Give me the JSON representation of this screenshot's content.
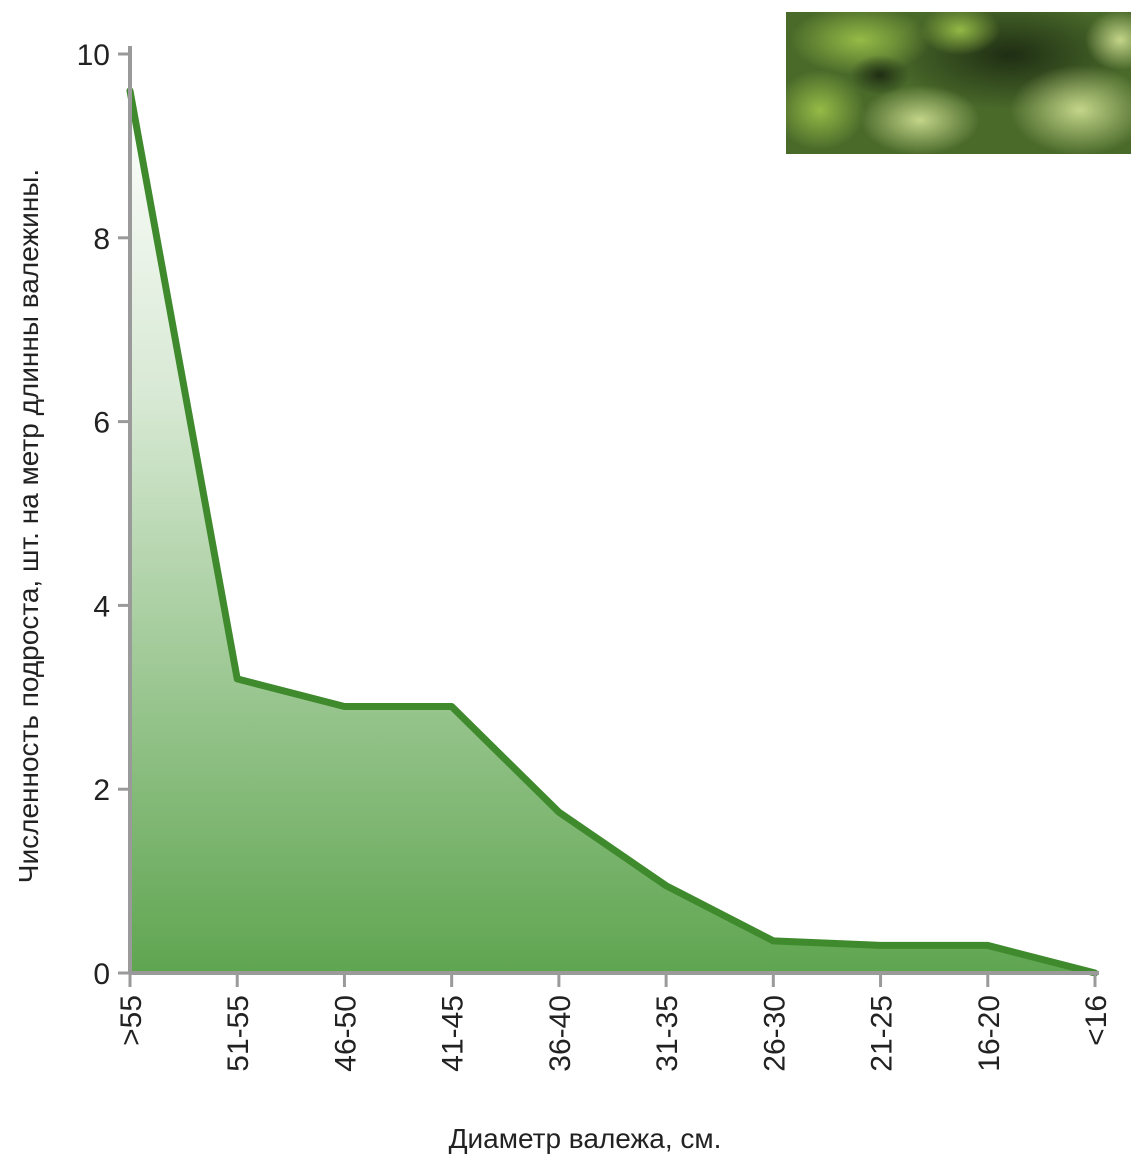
{
  "chart_data": {
    "type": "area",
    "xlabel": "Диаметр валежа, см.",
    "ylabel": "Численность подроста, шт. на метр длинны валежины.",
    "categories": [
      ">55",
      "51-55",
      "46-50",
      "41-45",
      "36-40",
      "31-35",
      "26-30",
      "21-25",
      "16-20",
      "<16"
    ],
    "series": [
      {
        "values": [
          9.6,
          3.2,
          2.9,
          2.9,
          1.75,
          0.95,
          0.35,
          0.3,
          0.3,
          0.0
        ]
      }
    ],
    "ylim": [
      0,
      10
    ],
    "yticks": [
      0,
      2,
      4,
      6,
      8,
      10
    ],
    "grid": false,
    "legend": "none",
    "colors": {
      "line": "#3f8a2c",
      "fill": "#5fa550",
      "axis": "#9a9a9a",
      "text": "#222222"
    },
    "decorative_image": "forest-vegetation-photo"
  }
}
